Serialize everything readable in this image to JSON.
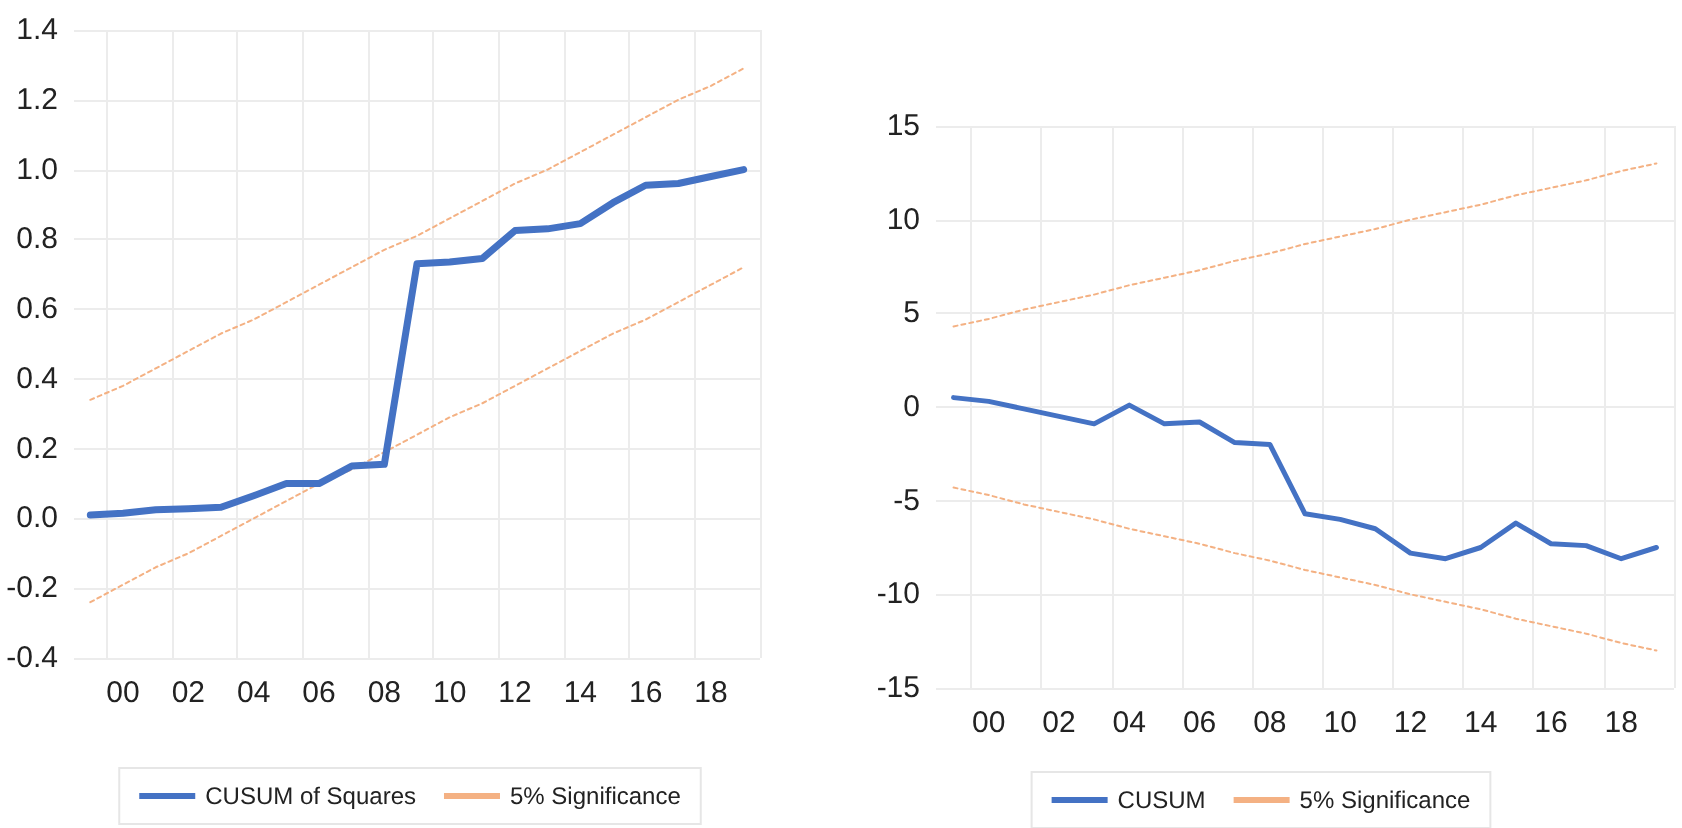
{
  "chart_data": [
    {
      "type": "line",
      "categories": [
        null,
        "00",
        null,
        "02",
        null,
        "04",
        null,
        "06",
        null,
        "08",
        null,
        "10",
        null,
        "12",
        null,
        "14",
        null,
        "16",
        null,
        "18",
        null
      ],
      "series": [
        {
          "name": "CUSUM of Squares",
          "color": "#4472c4",
          "line_style": "solid",
          "values": [
            0.01,
            0.015,
            0.025,
            0.028,
            0.032,
            0.065,
            0.1,
            0.1,
            0.15,
            0.155,
            0.73,
            0.735,
            0.745,
            0.825,
            0.83,
            0.845,
            0.905,
            0.955,
            0.96,
            0.98,
            1.0
          ]
        },
        {
          "name": "5% Significance",
          "color": "#f4b183",
          "line_style": "dotted",
          "values": [
            0.34,
            0.38,
            0.43,
            0.48,
            0.53,
            0.57,
            0.62,
            0.67,
            0.72,
            0.77,
            0.81,
            0.86,
            0.91,
            0.96,
            1.0,
            1.05,
            1.1,
            1.15,
            1.2,
            1.24,
            1.29
          ]
        },
        {
          "color": "#f4b183",
          "line_style": "dotted",
          "values": [
            -0.24,
            -0.19,
            -0.14,
            -0.1,
            -0.05,
            0.0,
            0.05,
            0.1,
            0.14,
            0.19,
            0.24,
            0.29,
            0.33,
            0.38,
            0.43,
            0.48,
            0.53,
            0.57,
            0.62,
            0.67,
            0.72
          ]
        }
      ],
      "ylim": [
        -0.4,
        1.4
      ],
      "yticks": [
        -0.4,
        -0.2,
        {
          "value": 0,
          "label": "0.0"
        },
        0.2,
        0.4,
        0.6,
        0.8,
        {
          "value": 1,
          "label": "1.0"
        },
        1.2,
        1.4
      ],
      "grid": true,
      "legend": "bottom",
      "marker": "none"
    },
    {
      "type": "line",
      "categories": [
        null,
        "00",
        null,
        "02",
        null,
        "04",
        null,
        "06",
        null,
        "08",
        null,
        "10",
        null,
        "12",
        null,
        "14",
        null,
        "16",
        null,
        "18",
        null
      ],
      "series": [
        {
          "name": "CUSUM",
          "color": "#4472c4",
          "line_style": "solid",
          "values": [
            0.5,
            0.3,
            -0.1,
            -0.5,
            -0.9,
            0.1,
            -0.9,
            -0.8,
            -1.9,
            -2.0,
            -5.7,
            -6.0,
            -6.5,
            -7.8,
            -8.1,
            -7.5,
            -6.2,
            -7.3,
            -7.4,
            -8.1,
            -7.5
          ]
        },
        {
          "name": "5% Significance",
          "color": "#f4b183",
          "line_style": "dotted",
          "values": [
            4.3,
            4.7,
            5.2,
            5.6,
            6.0,
            6.5,
            6.9,
            7.3,
            7.8,
            8.2,
            8.7,
            9.1,
            9.5,
            10.0,
            10.4,
            10.8,
            11.3,
            11.7,
            12.1,
            12.6,
            13.0
          ]
        },
        {
          "color": "#f4b183",
          "line_style": "dotted",
          "values": [
            -4.3,
            -4.7,
            -5.2,
            -5.6,
            -6.0,
            -6.5,
            -6.9,
            -7.3,
            -7.8,
            -8.2,
            -8.7,
            -9.1,
            -9.5,
            -10.0,
            -10.4,
            -10.8,
            -11.3,
            -11.7,
            -12.1,
            -12.6,
            -13.0
          ]
        }
      ],
      "ylim": [
        -15,
        15
      ],
      "yticks": [
        -15,
        -10,
        -5,
        0,
        5,
        10,
        15
      ],
      "grid": true,
      "legend": "bottom",
      "marker": "none"
    }
  ]
}
